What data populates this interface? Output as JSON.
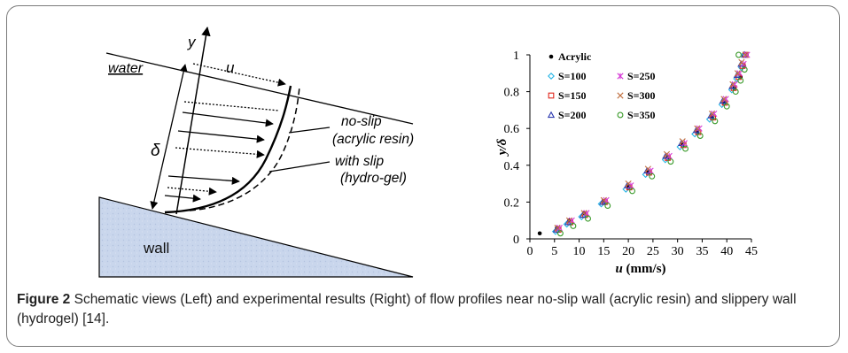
{
  "figure": {
    "caption_label": "Figure 2",
    "caption_text": " Schematic views (Left) and experimental results (Right) of flow profiles near no-slip wall (acrylic resin) and slippery wall (hydrogel) [14]."
  },
  "schematic": {
    "labels": {
      "y_axis": "y",
      "water": "water",
      "u": "u",
      "delta": "δ",
      "noslip_line1": "no-slip",
      "noslip_line2": "(acrylic resin)",
      "slip_line1": "with slip",
      "slip_line2": "(hydro-gel)",
      "wall": "wall"
    },
    "colors": {
      "wall_fill": "#c9d6ec",
      "line": "#000000"
    }
  },
  "chart_data": {
    "type": "scatter",
    "xlabel_symbol": "u",
    "xlabel_unit": " (mm/s)",
    "ylabel": "y/δ",
    "xlim": [
      0,
      45
    ],
    "ylim": [
      0,
      1
    ],
    "xticks": [
      "0",
      "5",
      "10",
      "15",
      "20",
      "25",
      "30",
      "35",
      "40",
      "45"
    ],
    "yticks": [
      "0",
      "0.2",
      "0.4",
      "0.6",
      "0.8",
      "1"
    ],
    "grid": false,
    "legend": "upper-left inside",
    "series": [
      {
        "name": "Acrylic",
        "marker": "dot",
        "color": "#000000",
        "x": [
          2,
          5.5,
          8,
          11,
          15,
          20,
          24,
          28,
          31,
          34,
          37,
          39.5,
          41.5,
          42.8,
          43.5,
          44
        ],
        "y": [
          0.03,
          0.06,
          0.1,
          0.14,
          0.2,
          0.28,
          0.36,
          0.44,
          0.51,
          0.58,
          0.66,
          0.74,
          0.82,
          0.88,
          0.94,
          1.0
        ]
      },
      {
        "name": "S=100",
        "marker": "diamond",
        "color": "#29b6e6",
        "x": [
          5.2,
          7.5,
          10.5,
          14.5,
          19.5,
          23.5,
          27.5,
          30.5,
          33.5,
          36.5,
          39,
          41,
          42,
          43,
          43.5
        ],
        "y": [
          0.04,
          0.08,
          0.12,
          0.19,
          0.27,
          0.35,
          0.43,
          0.5,
          0.57,
          0.65,
          0.73,
          0.81,
          0.87,
          0.93,
          1.0
        ]
      },
      {
        "name": "S=150",
        "marker": "square",
        "color": "#e0261c",
        "x": [
          5.8,
          8.2,
          11.2,
          15.2,
          20.2,
          24.2,
          28,
          31.2,
          34.2,
          37.2,
          39.6,
          41.4,
          42.4,
          43.2,
          43.8
        ],
        "y": [
          0.05,
          0.09,
          0.13,
          0.2,
          0.28,
          0.36,
          0.44,
          0.51,
          0.58,
          0.66,
          0.74,
          0.82,
          0.88,
          0.94,
          1.0
        ]
      },
      {
        "name": "S=200",
        "marker": "triangle",
        "color": "#2e3bb0",
        "x": [
          5.4,
          7.8,
          10.8,
          14.8,
          19.8,
          23.8,
          27.6,
          30.8,
          33.8,
          36.8,
          39.2,
          41.1,
          42.1,
          42.9,
          43.6
        ],
        "y": [
          0.05,
          0.09,
          0.13,
          0.2,
          0.29,
          0.37,
          0.45,
          0.52,
          0.59,
          0.67,
          0.75,
          0.83,
          0.89,
          0.95,
          1.0
        ]
      },
      {
        "name": "S=250",
        "marker": "star",
        "color": "#d63bd6",
        "x": [
          6,
          8.5,
          11.5,
          15.5,
          20.5,
          24.5,
          28.3,
          31.4,
          34.4,
          37.4,
          39.8,
          41.6,
          42.6,
          43.4,
          44.1
        ],
        "y": [
          0.06,
          0.1,
          0.14,
          0.21,
          0.29,
          0.37,
          0.45,
          0.52,
          0.6,
          0.68,
          0.76,
          0.84,
          0.9,
          0.95,
          1.0
        ]
      },
      {
        "name": "S=300",
        "marker": "x",
        "color": "#c07040",
        "x": [
          5.6,
          8,
          11,
          15,
          20,
          24,
          27.8,
          31,
          34,
          37,
          39.4,
          41.2,
          42.2,
          43,
          43.8
        ],
        "y": [
          0.06,
          0.1,
          0.14,
          0.21,
          0.3,
          0.38,
          0.46,
          0.53,
          0.6,
          0.68,
          0.76,
          0.84,
          0.9,
          0.96,
          1.0
        ]
      },
      {
        "name": "S=350",
        "marker": "circle",
        "color": "#3a9a2a",
        "x": [
          6.2,
          8.8,
          11.8,
          15.8,
          20.8,
          24.8,
          28.6,
          31.6,
          34.6,
          37.6,
          40,
          41.8,
          42.8,
          43.6,
          42.4
        ],
        "y": [
          0.03,
          0.07,
          0.11,
          0.18,
          0.26,
          0.34,
          0.42,
          0.49,
          0.56,
          0.64,
          0.72,
          0.8,
          0.86,
          0.92,
          1.0
        ]
      }
    ]
  }
}
